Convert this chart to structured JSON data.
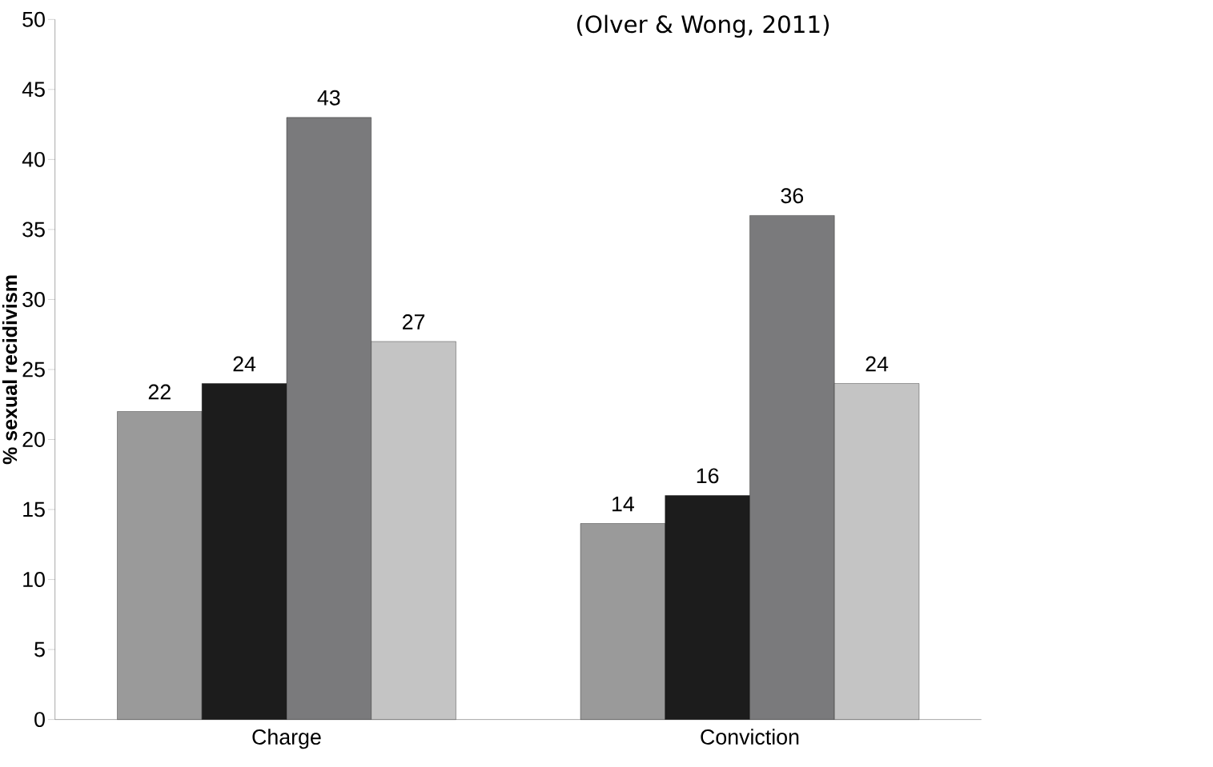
{
  "chart_data": {
    "type": "bar",
    "ylabel": "% sexual recidivism",
    "categories": [
      "Charge",
      "Conviction"
    ],
    "series": [
      {
        "color": "#9a9a9a",
        "values": [
          22,
          14
        ]
      },
      {
        "color": "#1c1c1c",
        "values": [
          24,
          16
        ]
      },
      {
        "color": "#7a7a7c",
        "values": [
          43,
          36
        ]
      },
      {
        "color": "#c4c4c4",
        "values": [
          27,
          24
        ]
      }
    ],
    "ylim": [
      0,
      50
    ],
    "yticks": [
      0,
      5,
      10,
      15,
      20,
      25,
      30,
      35,
      40,
      45,
      50
    ],
    "data_labels": true,
    "grid": false,
    "annotations": [
      "(Olver & Wong, 2011)"
    ]
  }
}
